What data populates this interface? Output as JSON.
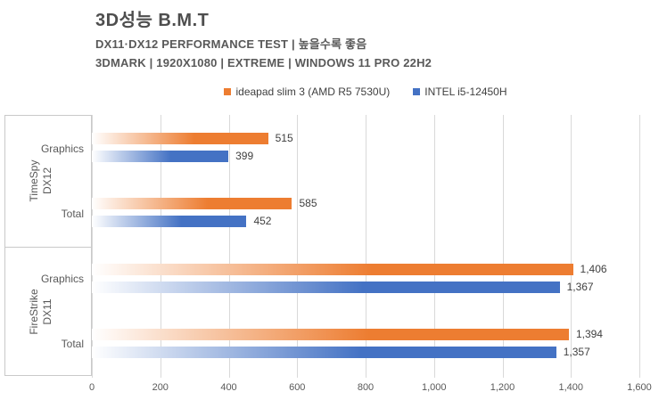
{
  "header": {
    "title": "3D성능 B.M.T",
    "subtitle_line1": "DX11·DX12 PERFORMANCE TEST | 높을수록 좋음",
    "subtitle_line2": "3DMARK | 1920X1080 | EXTREME | WINDOWS 11 PRO 22H2"
  },
  "colors": {
    "series1_orange": "#ED7D31",
    "series2_blue": "#4472C4",
    "gridline": "#D9D9D9",
    "axis_text": "#595959",
    "value_text": "#404040"
  },
  "chart_data": {
    "type": "bar",
    "orientation": "horizontal",
    "title": "3D성능 B.M.T",
    "subtitle": [
      "DX11·DX12 PERFORMANCE TEST | 높을수록 좋음",
      "3DMARK | 1920X1080 | EXTREME | WINDOWS 11 PRO 22H2"
    ],
    "categories": [
      "Graphics",
      "Total",
      "Graphics",
      "Total"
    ],
    "category_groups": [
      {
        "label": "TimeSpy DX12",
        "label_lines": [
          "TimeSpy",
          "DX12"
        ],
        "span": [
          0,
          1
        ]
      },
      {
        "label": "FireStrike DX11",
        "label_lines": [
          "FireStrike",
          "DX11"
        ],
        "span": [
          2,
          3
        ]
      }
    ],
    "series": [
      {
        "name": "ideapad slim 3 (AMD R5 7530U)",
        "color": "#ED7D31",
        "values": [
          515,
          585,
          1406,
          1394
        ]
      },
      {
        "name": "INTEL i5-12450H",
        "color": "#4472C4",
        "values": [
          399,
          452,
          1367,
          1357
        ]
      }
    ],
    "value_labels": [
      [
        "515",
        "585",
        "1,406",
        "1,394"
      ],
      [
        "399",
        "452",
        "1,367",
        "1,357"
      ]
    ],
    "xlim": [
      0,
      1600
    ],
    "x_ticks": [
      0,
      200,
      400,
      600,
      800,
      1000,
      1200,
      1400,
      1600
    ],
    "x_tick_labels": [
      "0",
      "200",
      "400",
      "600",
      "800",
      "1,000",
      "1,200",
      "1,400",
      "1,600"
    ],
    "grid": true,
    "legend_position": "top",
    "bar_fill": "horizontal gradient from white to series color",
    "higher_is_better_note": "높을수록 좋음"
  }
}
